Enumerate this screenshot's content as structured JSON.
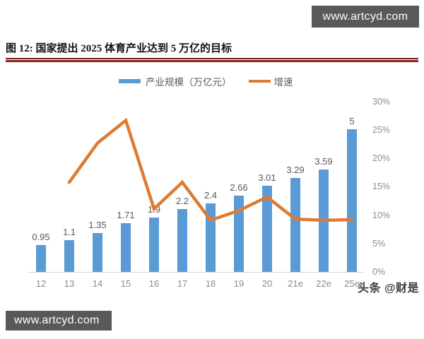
{
  "header": {
    "watermark_top": "www.artcyd.com",
    "title": "图 12: 国家提出 2025 体育产业达到 5 万亿的目标"
  },
  "legend": {
    "items": [
      {
        "label": "产业规模（万亿元）",
        "marker": "bar-swatch"
      },
      {
        "label": "增速",
        "marker": "line-swatch"
      }
    ]
  },
  "chart_data": {
    "type": "bar+line",
    "title": "国家提出 2025 体育产业达到 5 万亿的目标",
    "categories": [
      "12",
      "13",
      "14",
      "15",
      "16",
      "17",
      "18",
      "19",
      "20",
      "21e",
      "22e",
      "25e"
    ],
    "series": [
      {
        "name": "产业规模（万亿元）",
        "type": "bar",
        "axis": "left-hidden",
        "values": [
          0.95,
          1.1,
          1.35,
          1.71,
          1.9,
          2.2,
          2.4,
          2.66,
          3.01,
          3.29,
          3.59,
          5
        ],
        "labels": [
          "0.95",
          "1.1",
          "1.35",
          "1.71",
          "1.9",
          "2.2",
          "2.4",
          "2.66",
          "3.01",
          "3.29",
          "3.59",
          "5"
        ]
      },
      {
        "name": "增速",
        "type": "line",
        "axis": "right",
        "values_pct": [
          null,
          15.8,
          22.7,
          26.7,
          11.1,
          15.8,
          9.1,
          10.8,
          13.2,
          9.3,
          9.1,
          9.2
        ]
      }
    ],
    "right_axis": {
      "tick_labels": [
        "0%",
        "5%",
        "10%",
        "15%",
        "20%",
        "25%",
        "30%"
      ],
      "min": 0,
      "max": 30,
      "step": 5
    },
    "left_axis": {
      "visible": false
    },
    "grid": false,
    "legend_position": "top"
  },
  "footer": {
    "watermark_bottom": "www.artcyd.com",
    "byline": "头条 @财是"
  },
  "colors": {
    "bar": "#5B9BD5",
    "line": "#DE7B33",
    "rule_thin": "#6E1E1E",
    "rule_thick": "#8F2424",
    "watermark_bg": "#58595B",
    "axis_line": "#D6D6D6",
    "value_label": "#595959",
    "axis_label": "#8C8C8C"
  }
}
